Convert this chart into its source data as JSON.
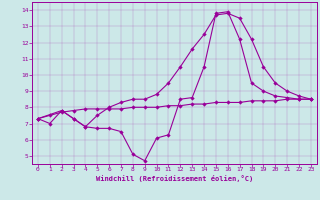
{
  "xlabel": "Windchill (Refroidissement éolien,°C)",
  "bg_color": "#cce8e8",
  "line_color": "#990099",
  "xlim": [
    -0.5,
    23.5
  ],
  "ylim": [
    4.5,
    14.5
  ],
  "xticks": [
    0,
    1,
    2,
    3,
    4,
    5,
    6,
    7,
    8,
    9,
    10,
    11,
    12,
    13,
    14,
    15,
    16,
    17,
    18,
    19,
    20,
    21,
    22,
    23
  ],
  "yticks": [
    5,
    6,
    7,
    8,
    9,
    10,
    11,
    12,
    13,
    14
  ],
  "line_a_x": [
    0,
    1,
    2,
    3,
    4,
    5,
    6,
    7,
    8,
    9,
    10,
    11,
    12,
    13,
    14,
    15,
    16,
    17,
    18,
    19,
    20,
    21,
    22,
    23
  ],
  "line_a_y": [
    7.3,
    7.5,
    7.7,
    7.8,
    7.9,
    7.9,
    7.9,
    7.9,
    8.0,
    8.0,
    8.0,
    8.1,
    8.1,
    8.2,
    8.2,
    8.3,
    8.3,
    8.3,
    8.4,
    8.4,
    8.4,
    8.5,
    8.5,
    8.5
  ],
  "line_b_x": [
    0,
    1,
    2,
    3,
    4,
    5,
    6,
    7,
    8,
    9,
    10,
    11,
    12,
    13,
    14,
    15,
    16,
    17,
    18,
    19,
    20,
    21,
    22,
    23
  ],
  "line_b_y": [
    7.3,
    7.0,
    7.8,
    7.3,
    6.8,
    6.7,
    6.7,
    6.5,
    5.1,
    4.7,
    6.1,
    6.3,
    8.5,
    8.6,
    10.5,
    13.8,
    13.9,
    12.2,
    9.5,
    9.0,
    8.7,
    8.6,
    8.5,
    8.5
  ],
  "line_c_x": [
    0,
    2,
    3,
    4,
    5,
    6,
    7,
    8,
    9,
    10,
    11,
    12,
    13,
    14,
    15,
    16,
    17,
    18,
    19,
    20,
    21,
    22,
    23
  ],
  "line_c_y": [
    7.3,
    7.8,
    7.3,
    6.8,
    7.5,
    8.0,
    8.3,
    8.5,
    8.5,
    8.8,
    9.5,
    10.5,
    11.6,
    12.5,
    13.7,
    13.8,
    13.5,
    12.2,
    10.5,
    9.5,
    9.0,
    8.7,
    8.5
  ]
}
